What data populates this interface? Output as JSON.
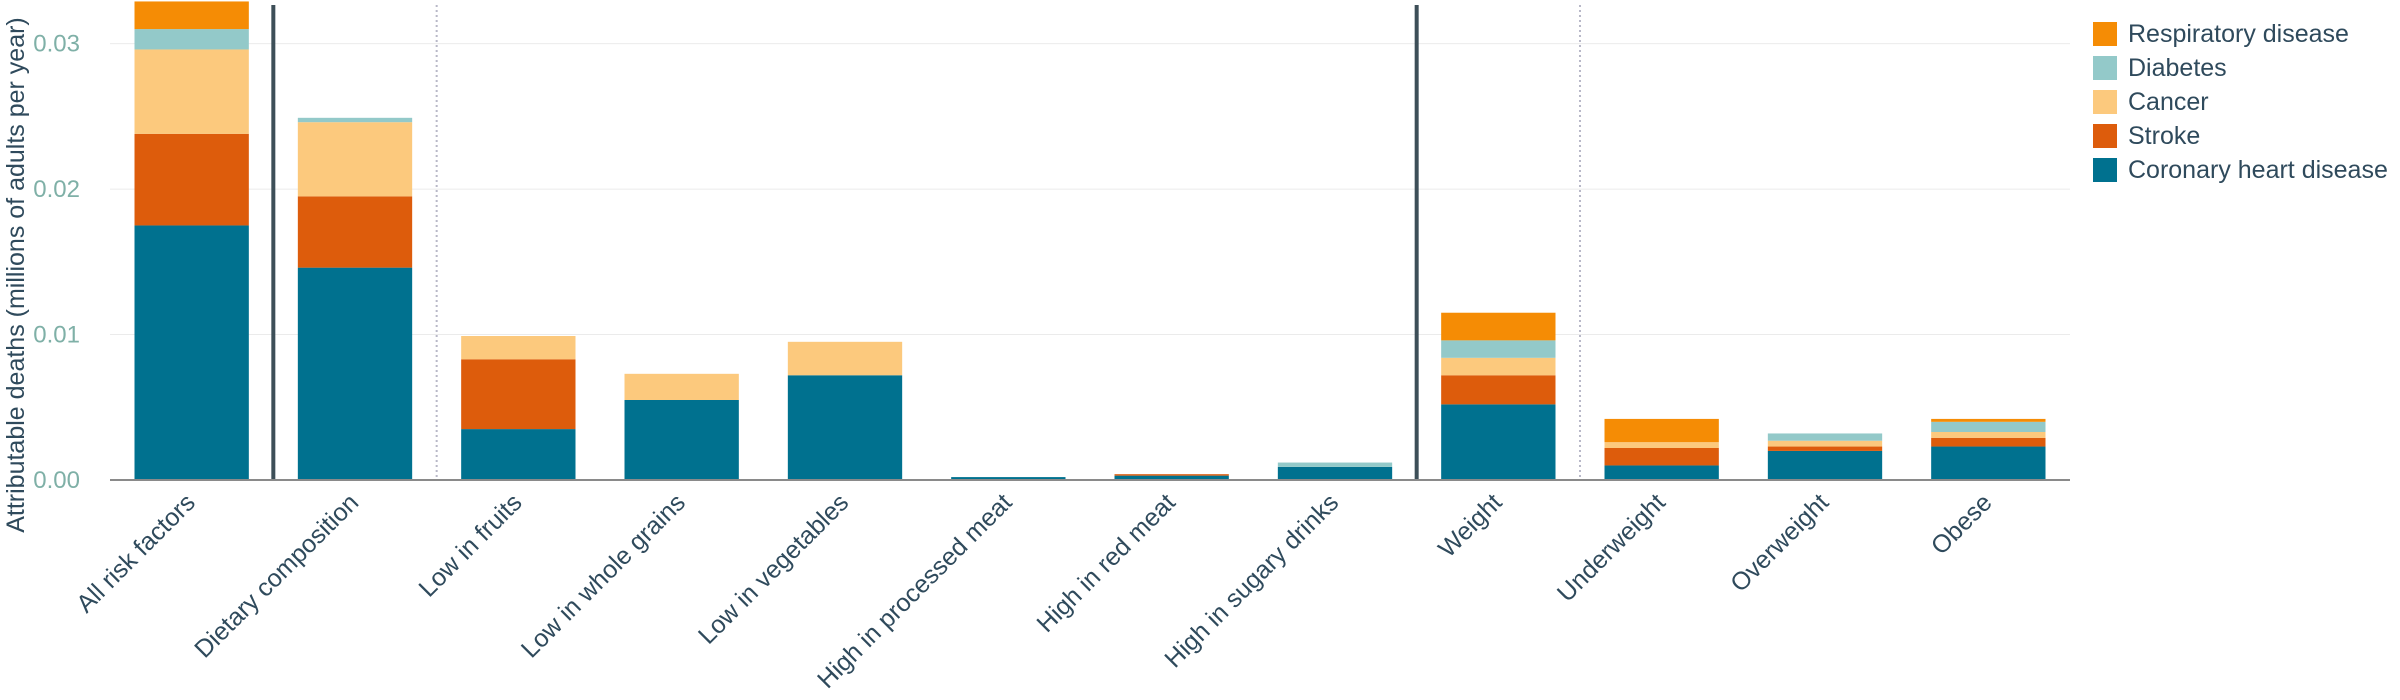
{
  "chart_data": {
    "type": "bar",
    "stacked": true,
    "ylabel": "Attributable deaths (millions of adults per year)",
    "ylim": [
      0,
      0.033
    ],
    "yticks": [
      0,
      0.01,
      0.02,
      0.03
    ],
    "ytick_labels": [
      "0.00",
      "0.01",
      "0.02",
      "0.03"
    ],
    "grid": true,
    "legend_position": "top-right",
    "categories": [
      "All risk factors",
      "Dietary composition",
      "Low in fruits",
      "Low in whole grains",
      "Low in vegetables",
      "High in processed meat",
      "High in red meat",
      "High in sugary drinks",
      "Weight",
      "Underweight",
      "Overweight",
      "Obese"
    ],
    "series": [
      {
        "name": "Coronary heart disease",
        "color": "#00718f",
        "values": [
          0.0175,
          0.0146,
          0.0035,
          0.0055,
          0.0072,
          0.0002,
          0.0003,
          0.0009,
          0.0052,
          0.001,
          0.002,
          0.0023
        ]
      },
      {
        "name": "Stroke",
        "color": "#dd5c0c",
        "values": [
          0.0063,
          0.0049,
          0.0048,
          0.0,
          0.0,
          0.0,
          0.0001,
          0.0,
          0.002,
          0.0012,
          0.0003,
          0.0006
        ]
      },
      {
        "name": "Cancer",
        "color": "#fcc97d",
        "values": [
          0.0058,
          0.0051,
          0.0016,
          0.0018,
          0.0023,
          0.0,
          0.0,
          0.0,
          0.0012,
          0.0004,
          0.0004,
          0.0004
        ]
      },
      {
        "name": "Diabetes",
        "color": "#93c9c9",
        "values": [
          0.0014,
          0.0003,
          0.0,
          0.0,
          0.0,
          0.0,
          0.0,
          0.0003,
          0.0012,
          0.0,
          0.0005,
          0.0007
        ]
      },
      {
        "name": "Respiratory disease",
        "color": "#f58c05",
        "values": [
          0.0019,
          0.0,
          0.0,
          0.0,
          0.0,
          0.0,
          0.0,
          0.0,
          0.0019,
          0.0016,
          0.0,
          0.0002
        ]
      }
    ],
    "group_separators": [
      {
        "after_category": 0,
        "style": "solid"
      },
      {
        "after_category": 1,
        "style": "dotted"
      },
      {
        "after_category": 7,
        "style": "solid"
      },
      {
        "after_category": 8,
        "style": "dotted"
      }
    ]
  }
}
